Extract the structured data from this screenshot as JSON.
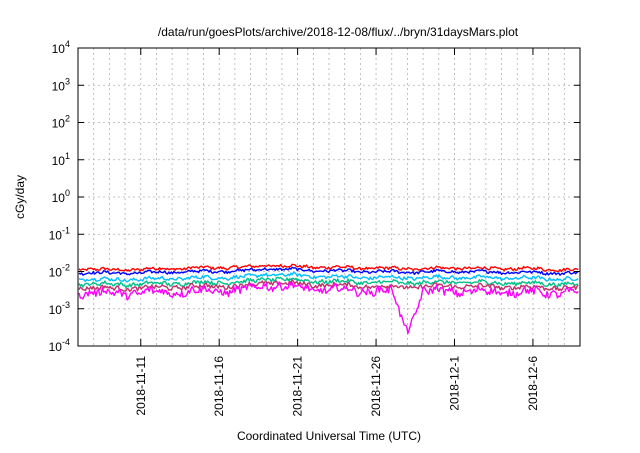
{
  "chart_data": {
    "type": "line",
    "title": "/data/run/goesPlots/archive/2018-12-08/flux/../bryn/31daysMars.plot",
    "xlabel": "Coordinated Universal Time (UTC)",
    "ylabel": "cGy/day",
    "y_scale": "log",
    "ylim": [
      0.0001,
      10000
    ],
    "y_ticks": [
      {
        "value": 0.0001,
        "base": "10",
        "exp": "-4"
      },
      {
        "value": 0.001,
        "base": "10",
        "exp": "-3"
      },
      {
        "value": 0.01,
        "base": "10",
        "exp": "-2"
      },
      {
        "value": 0.1,
        "base": "10",
        "exp": "-1"
      },
      {
        "value": 1,
        "base": "10",
        "exp": "0"
      },
      {
        "value": 10,
        "base": "10",
        "exp": "1"
      },
      {
        "value": 100,
        "base": "10",
        "exp": "2"
      },
      {
        "value": 1000,
        "base": "10",
        "exp": "3"
      },
      {
        "value": 10000,
        "base": "10",
        "exp": "4"
      }
    ],
    "xlim": [
      "2018-11-07",
      "2018-12-09"
    ],
    "x_ticks": [
      {
        "value": "2018-11-11",
        "label": "2018-11-11"
      },
      {
        "value": "2018-11-16",
        "label": "2018-11-16"
      },
      {
        "value": "2018-11-21",
        "label": "2018-11-21"
      },
      {
        "value": "2018-11-26",
        "label": "2018-11-26"
      },
      {
        "value": "2018-12-01",
        "label": "2018-12-1"
      },
      {
        "value": "2018-12-06",
        "label": "2018-12-6"
      }
    ],
    "grid": true,
    "series": [
      {
        "color": "#ff0000",
        "x": [
          "2018-11-07",
          "2018-11-09",
          "2018-11-11",
          "2018-11-13",
          "2018-11-15",
          "2018-11-17",
          "2018-11-18",
          "2018-11-19",
          "2018-11-21",
          "2018-11-23",
          "2018-11-25",
          "2018-11-27",
          "2018-11-29",
          "2018-12-01",
          "2018-12-03",
          "2018-12-05",
          "2018-12-07",
          "2018-12-09"
        ],
        "values": [
          0.012,
          0.011,
          0.0115,
          0.012,
          0.0125,
          0.013,
          0.013,
          0.015,
          0.0135,
          0.013,
          0.0125,
          0.012,
          0.012,
          0.0125,
          0.012,
          0.012,
          0.0115,
          0.011
        ]
      },
      {
        "color": "#0000ff",
        "x": [
          "2018-11-07",
          "2018-11-09",
          "2018-11-11",
          "2018-11-13",
          "2018-11-15",
          "2018-11-17",
          "2018-11-18",
          "2018-11-19",
          "2018-11-21",
          "2018-11-23",
          "2018-11-25",
          "2018-11-27",
          "2018-11-29",
          "2018-12-01",
          "2018-12-03",
          "2018-12-05",
          "2018-12-07",
          "2018-12-09"
        ],
        "values": [
          0.0095,
          0.009,
          0.0092,
          0.0097,
          0.01,
          0.0105,
          0.0105,
          0.012,
          0.011,
          0.0105,
          0.01,
          0.0097,
          0.0097,
          0.01,
          0.0097,
          0.0096,
          0.0092,
          0.009
        ]
      },
      {
        "color": "#00bfff",
        "x": [
          "2018-11-07",
          "2018-11-09",
          "2018-11-11",
          "2018-11-13",
          "2018-11-15",
          "2018-11-17",
          "2018-11-18",
          "2018-11-19",
          "2018-11-21",
          "2018-11-23",
          "2018-11-25",
          "2018-11-27",
          "2018-11-29",
          "2018-12-01",
          "2018-12-03",
          "2018-12-05",
          "2018-12-07",
          "2018-12-09"
        ],
        "values": [
          0.0065,
          0.006,
          0.0062,
          0.0065,
          0.0068,
          0.007,
          0.0072,
          0.0085,
          0.0078,
          0.0073,
          0.007,
          0.0068,
          0.0068,
          0.007,
          0.0068,
          0.0067,
          0.0064,
          0.0062
        ]
      },
      {
        "color": "#00c08a",
        "x": [
          "2018-11-07",
          "2018-11-09",
          "2018-11-11",
          "2018-11-13",
          "2018-11-15",
          "2018-11-17",
          "2018-11-18",
          "2018-11-19",
          "2018-11-21",
          "2018-11-23",
          "2018-11-25",
          "2018-11-27",
          "2018-11-29",
          "2018-12-01",
          "2018-12-03",
          "2018-12-05",
          "2018-12-07",
          "2018-12-09"
        ],
        "values": [
          0.0048,
          0.0045,
          0.0046,
          0.0048,
          0.005,
          0.0052,
          0.0053,
          0.0065,
          0.0058,
          0.0054,
          0.0052,
          0.005,
          0.005,
          0.0052,
          0.005,
          0.0049,
          0.0047,
          0.0046
        ]
      },
      {
        "color": "#c0306a",
        "x": [
          "2018-11-07",
          "2018-11-09",
          "2018-11-11",
          "2018-11-13",
          "2018-11-15",
          "2018-11-17",
          "2018-11-18",
          "2018-11-19",
          "2018-11-21",
          "2018-11-23",
          "2018-11-25",
          "2018-11-27",
          "2018-11-29",
          "2018-12-01",
          "2018-12-03",
          "2018-12-05",
          "2018-12-07",
          "2018-12-09"
        ],
        "values": [
          0.0038,
          0.0035,
          0.0036,
          0.0038,
          0.004,
          0.0041,
          0.0042,
          0.0052,
          0.0046,
          0.0043,
          0.0041,
          0.0039,
          0.0039,
          0.0041,
          0.0039,
          0.0038,
          0.0037,
          0.0036
        ]
      },
      {
        "color": "#ff00ff",
        "x": [
          "2018-11-07",
          "2018-11-09",
          "2018-11-11",
          "2018-11-13",
          "2018-11-15",
          "2018-11-17",
          "2018-11-18",
          "2018-11-19",
          "2018-11-21",
          "2018-11-23",
          "2018-11-25",
          "2018-11-27",
          "2018-11-28",
          "2018-11-29",
          "2018-12-01",
          "2018-12-03",
          "2018-12-05",
          "2018-12-07",
          "2018-12-09"
        ],
        "values": [
          0.0028,
          0.0026,
          0.0027,
          0.0028,
          0.003,
          0.0031,
          0.0032,
          0.0045,
          0.0036,
          0.0032,
          0.0031,
          0.0029,
          0.00025,
          0.0029,
          0.003,
          0.0029,
          0.0028,
          0.0027,
          0.0027
        ]
      }
    ]
  }
}
